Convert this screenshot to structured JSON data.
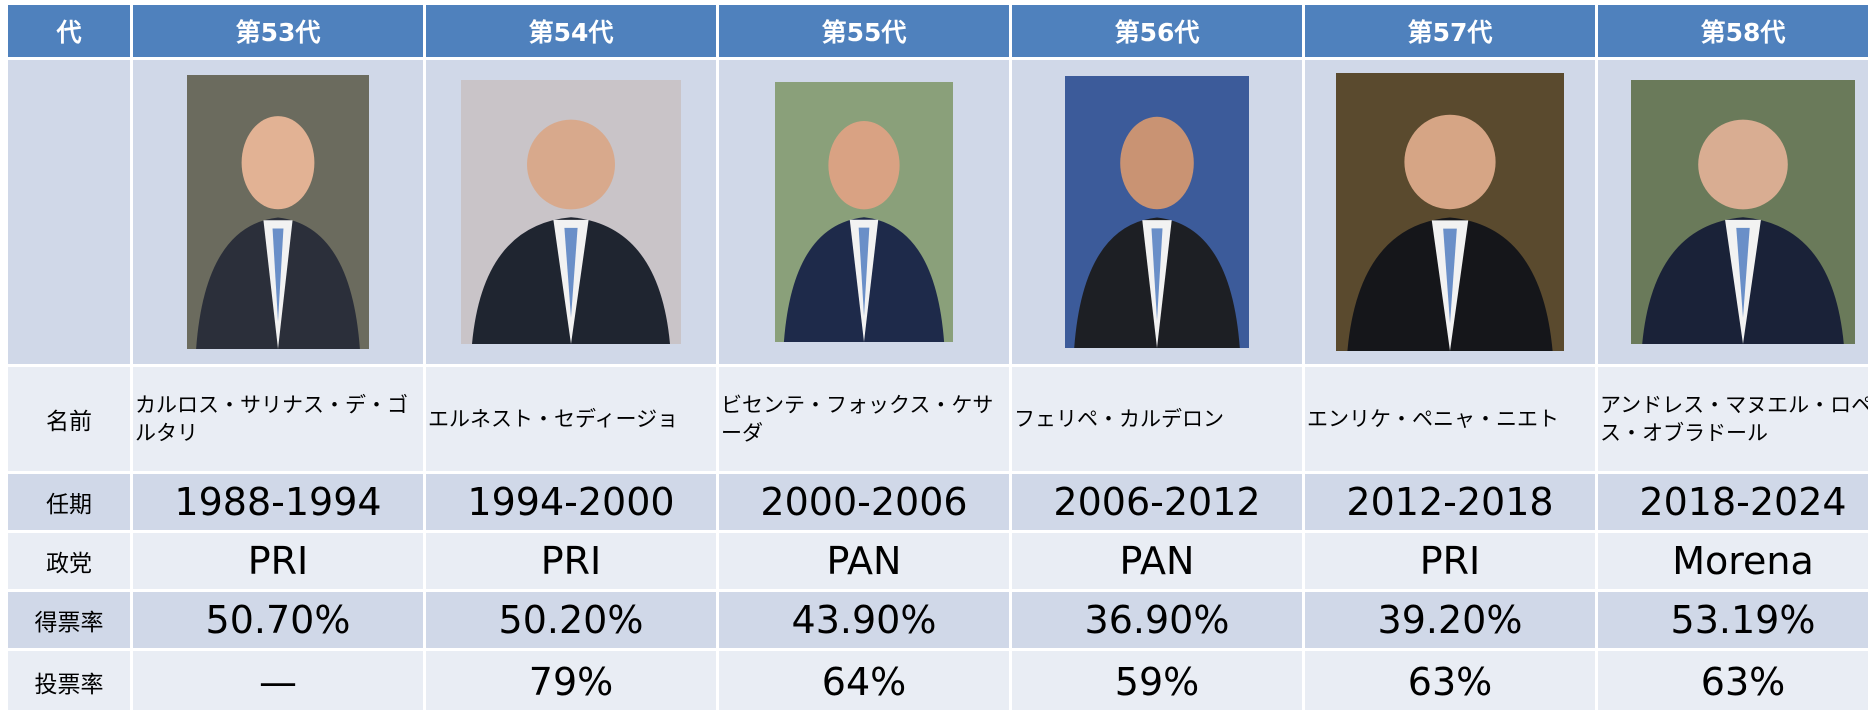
{
  "table": {
    "header": [
      "代",
      "第53代",
      "第54代",
      "第55代",
      "第56代",
      "第57代",
      "第58代"
    ],
    "rows": [
      {
        "label": "名前",
        "cells": [
          "カルロス・サリナス・デ・ゴルタリ",
          "エルネスト・セディージョ",
          "ビセンテ・フォックス・ケサーダ",
          "フェリペ・カルデロン",
          "エンリケ・ペニャ・ニエト",
          "アンドレス・マヌエル・ロペス・オブラドール"
        ]
      },
      {
        "label": "任期",
        "cells": [
          "1988-1994",
          "1994-2000",
          "2000-2006",
          "2006-2012",
          "2012-2018",
          "2018-2024"
        ]
      },
      {
        "label": "政党",
        "cells": [
          "PRI",
          "PRI",
          "PAN",
          "PAN",
          "PRI",
          "Morena"
        ]
      },
      {
        "label": "得票率",
        "cells": [
          "50.70%",
          "50.20%",
          "43.90%",
          "36.90%",
          "39.20%",
          "53.19%"
        ]
      },
      {
        "label": "投票率",
        "cells": [
          "—",
          "79%",
          "64%",
          "59%",
          "63%",
          "63%"
        ]
      }
    ]
  }
}
